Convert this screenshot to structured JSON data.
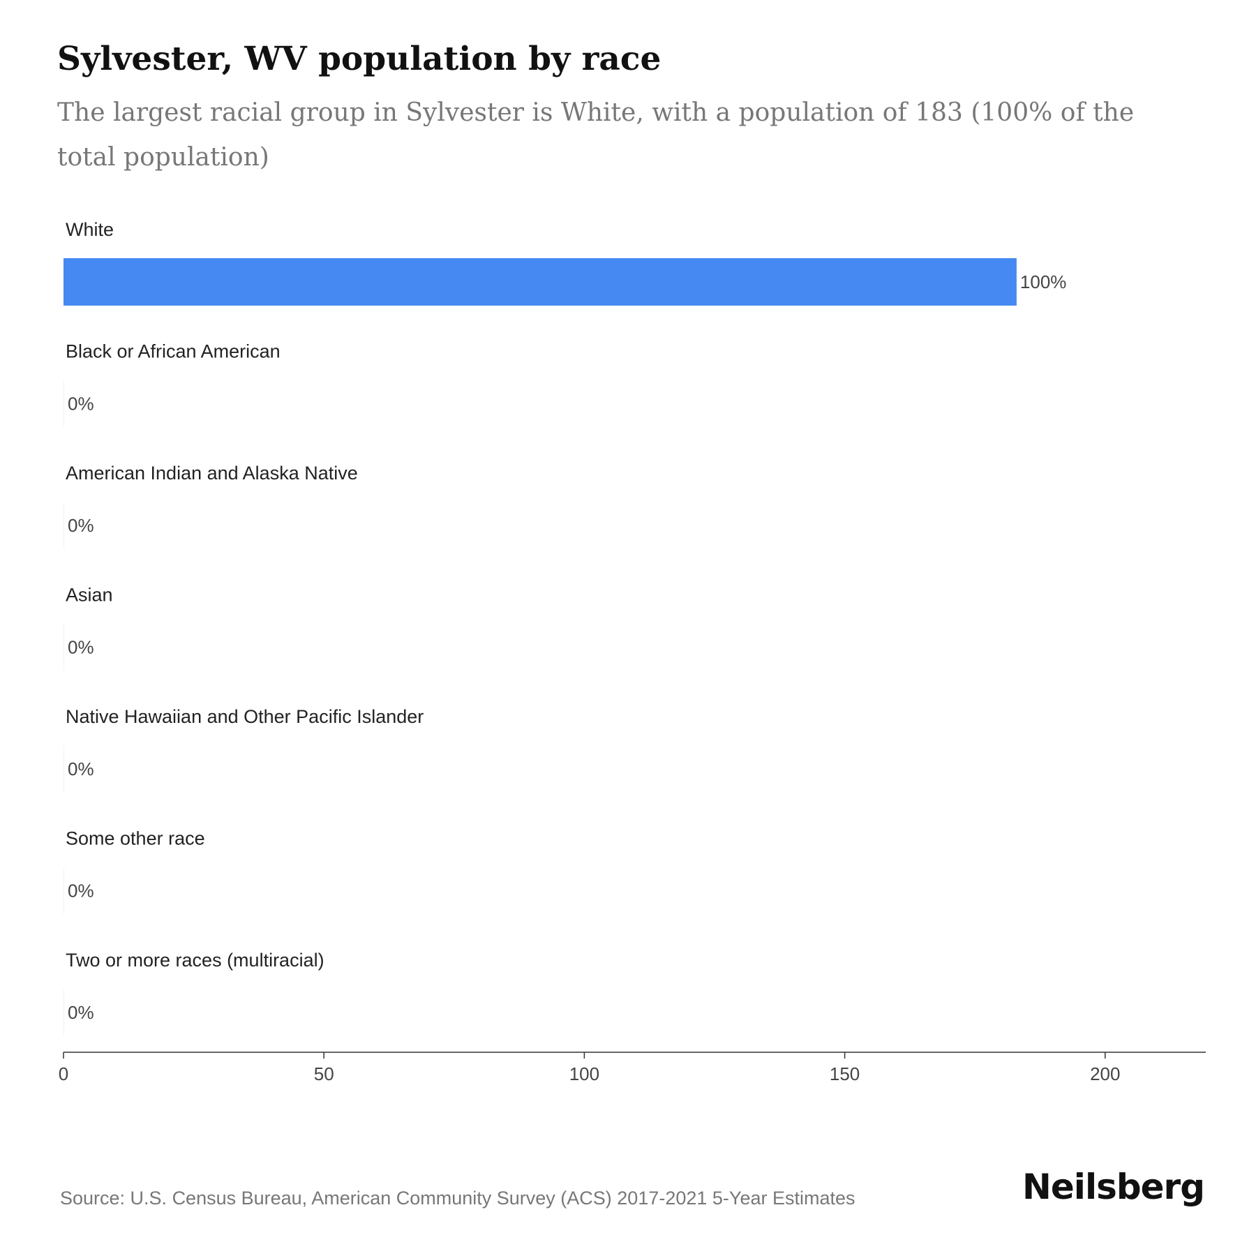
{
  "header": {
    "title": "Sylvester, WV population by race",
    "subtitle": "The largest racial group in Sylvester is White, with a population of 183 (100% of the total population)"
  },
  "chart_data": {
    "type": "bar",
    "orientation": "horizontal",
    "categories": [
      "White",
      "Black or African American",
      "American Indian and Alaska Native",
      "Asian",
      "Native Hawaiian and Other Pacific Islander",
      "Some other race",
      "Two or more races (multiracial)"
    ],
    "values": [
      183,
      0,
      0,
      0,
      0,
      0,
      0
    ],
    "value_labels": [
      "100%",
      "0%",
      "0%",
      "0%",
      "0%",
      "0%",
      "0%"
    ],
    "xlim": [
      0,
      220
    ],
    "xticks": [
      0,
      50,
      100,
      150,
      200
    ],
    "xtick_labels": [
      "0",
      "50",
      "100",
      "150",
      "200"
    ],
    "bar_color": "#4689F2",
    "grid": false,
    "legend": "none"
  },
  "footer": {
    "source": "Source: U.S. Census Bureau, American Community Survey (ACS) 2017-2021 5-Year Estimates",
    "brand": "Neilsberg"
  }
}
